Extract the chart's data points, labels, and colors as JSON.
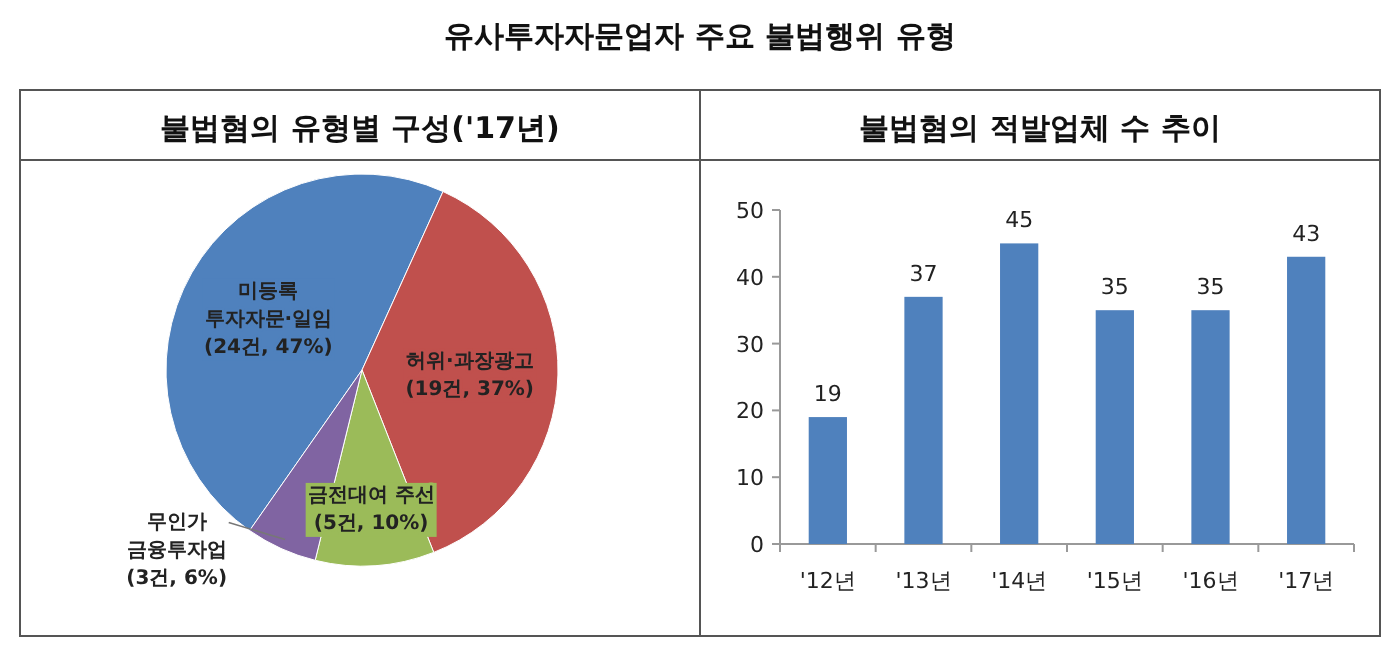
{
  "chart_data": [
    {
      "type": "pie",
      "title": "불법혐의 유형별 구성('17년)",
      "annotations": [
        "유사투자자문업자 주요 불법행위 유형"
      ],
      "categories": [
        "미등록 투자자문·일임",
        "허위·과장광고",
        "금전대여 주선",
        "무인가 금융투자업"
      ],
      "values": [
        24,
        19,
        5,
        3
      ],
      "value_labels": [
        "(24건, 47%)",
        "(19건, 37%)",
        "(5건, 10%)",
        "(3건, 6%)"
      ],
      "colors": [
        "#4f81bd",
        "#c0504d",
        "#9bbb59",
        "#8064a2"
      ]
    },
    {
      "type": "bar",
      "title": "불법혐의 적발업체 수 추이",
      "categories": [
        "'12년",
        "'13년",
        "'14년",
        "'15년",
        "'16년",
        "'17년"
      ],
      "values": [
        19,
        37,
        45,
        35,
        35,
        43
      ],
      "color": "#4f81bd",
      "ylim": [
        0,
        50
      ],
      "yticks": [
        0,
        10,
        20,
        30,
        40,
        50
      ],
      "data_labels": true
    }
  ]
}
